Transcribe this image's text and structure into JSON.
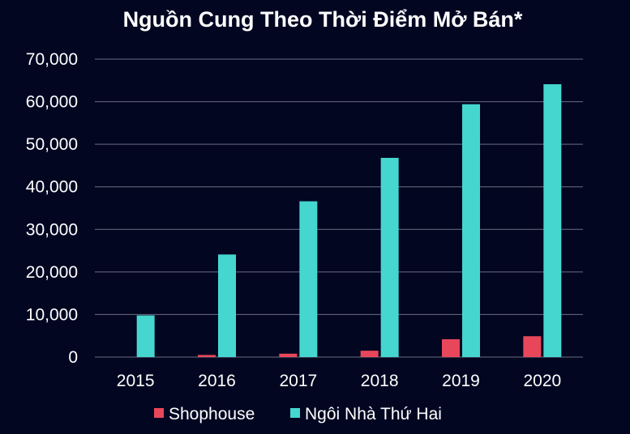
{
  "chart_data": {
    "type": "bar",
    "title": "Nguồn Cung Theo Thời Điểm Mở Bán*",
    "categories": [
      "2015",
      "2016",
      "2017",
      "2018",
      "2019",
      "2020"
    ],
    "ylim": [
      0,
      70000
    ],
    "yticks": [
      0,
      10000,
      20000,
      30000,
      40000,
      50000,
      60000,
      70000
    ],
    "ytick_labels": [
      "0",
      "10,000",
      "20,000",
      "30,000",
      "40,000",
      "50,000",
      "60,000",
      "70,000"
    ],
    "grid": true,
    "legend_position": "bottom",
    "series": [
      {
        "name": "Shophouse",
        "color": "#e8475b",
        "values": [
          0,
          500,
          800,
          1500,
          4200,
          4900
        ]
      },
      {
        "name": "Ngôi Nhà Thứ Hai",
        "color": "#45d6cf",
        "values": [
          9800,
          24100,
          36600,
          46800,
          59400,
          64100
        ]
      }
    ]
  },
  "colors": {
    "background": "#020621",
    "grid": "#6b6e80",
    "text": "#ffffff"
  }
}
